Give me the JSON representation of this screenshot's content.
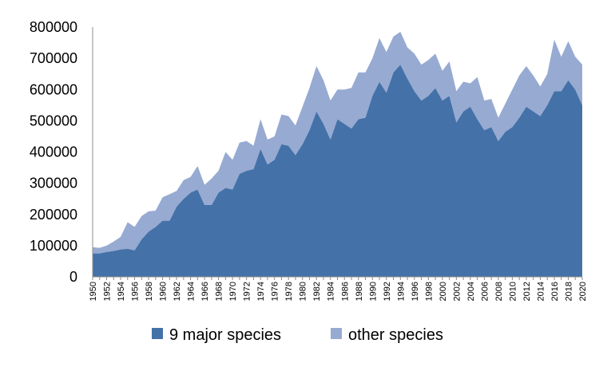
{
  "chart_data": {
    "type": "area",
    "stacked": true,
    "title": "",
    "xlabel": "",
    "ylabel": "",
    "ylim": [
      0,
      800000
    ],
    "yticks": [
      "0",
      "100000",
      "200000",
      "300000",
      "400000",
      "500000",
      "600000",
      "700000",
      "800000"
    ],
    "x": [
      1950,
      1951,
      1952,
      1953,
      1954,
      1955,
      1956,
      1957,
      1958,
      1959,
      1960,
      1961,
      1962,
      1963,
      1964,
      1965,
      1966,
      1967,
      1968,
      1969,
      1970,
      1971,
      1972,
      1973,
      1974,
      1975,
      1976,
      1977,
      1978,
      1979,
      1980,
      1981,
      1982,
      1983,
      1984,
      1985,
      1986,
      1987,
      1988,
      1989,
      1990,
      1991,
      1992,
      1993,
      1994,
      1995,
      1996,
      1997,
      1998,
      1999,
      2000,
      2001,
      2002,
      2003,
      2004,
      2005,
      2006,
      2007,
      2008,
      2009,
      2010,
      2011,
      2012,
      2013,
      2014,
      2015,
      2016,
      2017,
      2018,
      2019,
      2020
    ],
    "xtick_labels": [
      "1950",
      "1952",
      "1954",
      "1956",
      "1958",
      "1960",
      "1962",
      "1964",
      "1966",
      "1968",
      "1970",
      "1972",
      "1974",
      "1976",
      "1978",
      "1980",
      "1982",
      "1984",
      "1986",
      "1988",
      "1990",
      "1992",
      "1994",
      "1996",
      "1998",
      "2000",
      "2002",
      "2004",
      "2006",
      "2008",
      "2010",
      "2012",
      "2014",
      "2016",
      "2018",
      "2020"
    ],
    "grid": false,
    "legend_position": "bottom",
    "series": [
      {
        "name": "9 major species",
        "color": "#4472a8",
        "values": [
          75000,
          75000,
          80000,
          83000,
          88000,
          90000,
          85000,
          120000,
          145000,
          160000,
          180000,
          180000,
          225000,
          250000,
          270000,
          280000,
          230000,
          230000,
          270000,
          285000,
          280000,
          330000,
          340000,
          345000,
          410000,
          360000,
          375000,
          425000,
          420000,
          390000,
          425000,
          470000,
          530000,
          490000,
          440000,
          505000,
          490000,
          475000,
          505000,
          510000,
          580000,
          625000,
          590000,
          655000,
          680000,
          635000,
          595000,
          565000,
          580000,
          605000,
          565000,
          580000,
          495000,
          530000,
          545000,
          505000,
          470000,
          480000,
          435000,
          465000,
          480000,
          510000,
          545000,
          530000,
          515000,
          550000,
          595000,
          595000,
          630000,
          600000,
          550000
        ]
      },
      {
        "name": "other species",
        "color": "#97aad2",
        "values": [
          20000,
          18000,
          20000,
          30000,
          40000,
          85000,
          75000,
          75000,
          65000,
          52000,
          75000,
          85000,
          50000,
          60000,
          50000,
          75000,
          65000,
          85000,
          70000,
          115000,
          95000,
          100000,
          95000,
          75000,
          95000,
          80000,
          75000,
          95000,
          95000,
          95000,
          120000,
          135000,
          145000,
          140000,
          125000,
          95000,
          110000,
          130000,
          150000,
          145000,
          120000,
          140000,
          130000,
          115000,
          105000,
          100000,
          120000,
          115000,
          115000,
          110000,
          95000,
          110000,
          100000,
          95000,
          75000,
          135000,
          95000,
          90000,
          75000,
          90000,
          120000,
          135000,
          130000,
          115000,
          95000,
          100000,
          165000,
          110000,
          125000,
          105000,
          130000
        ]
      }
    ]
  }
}
